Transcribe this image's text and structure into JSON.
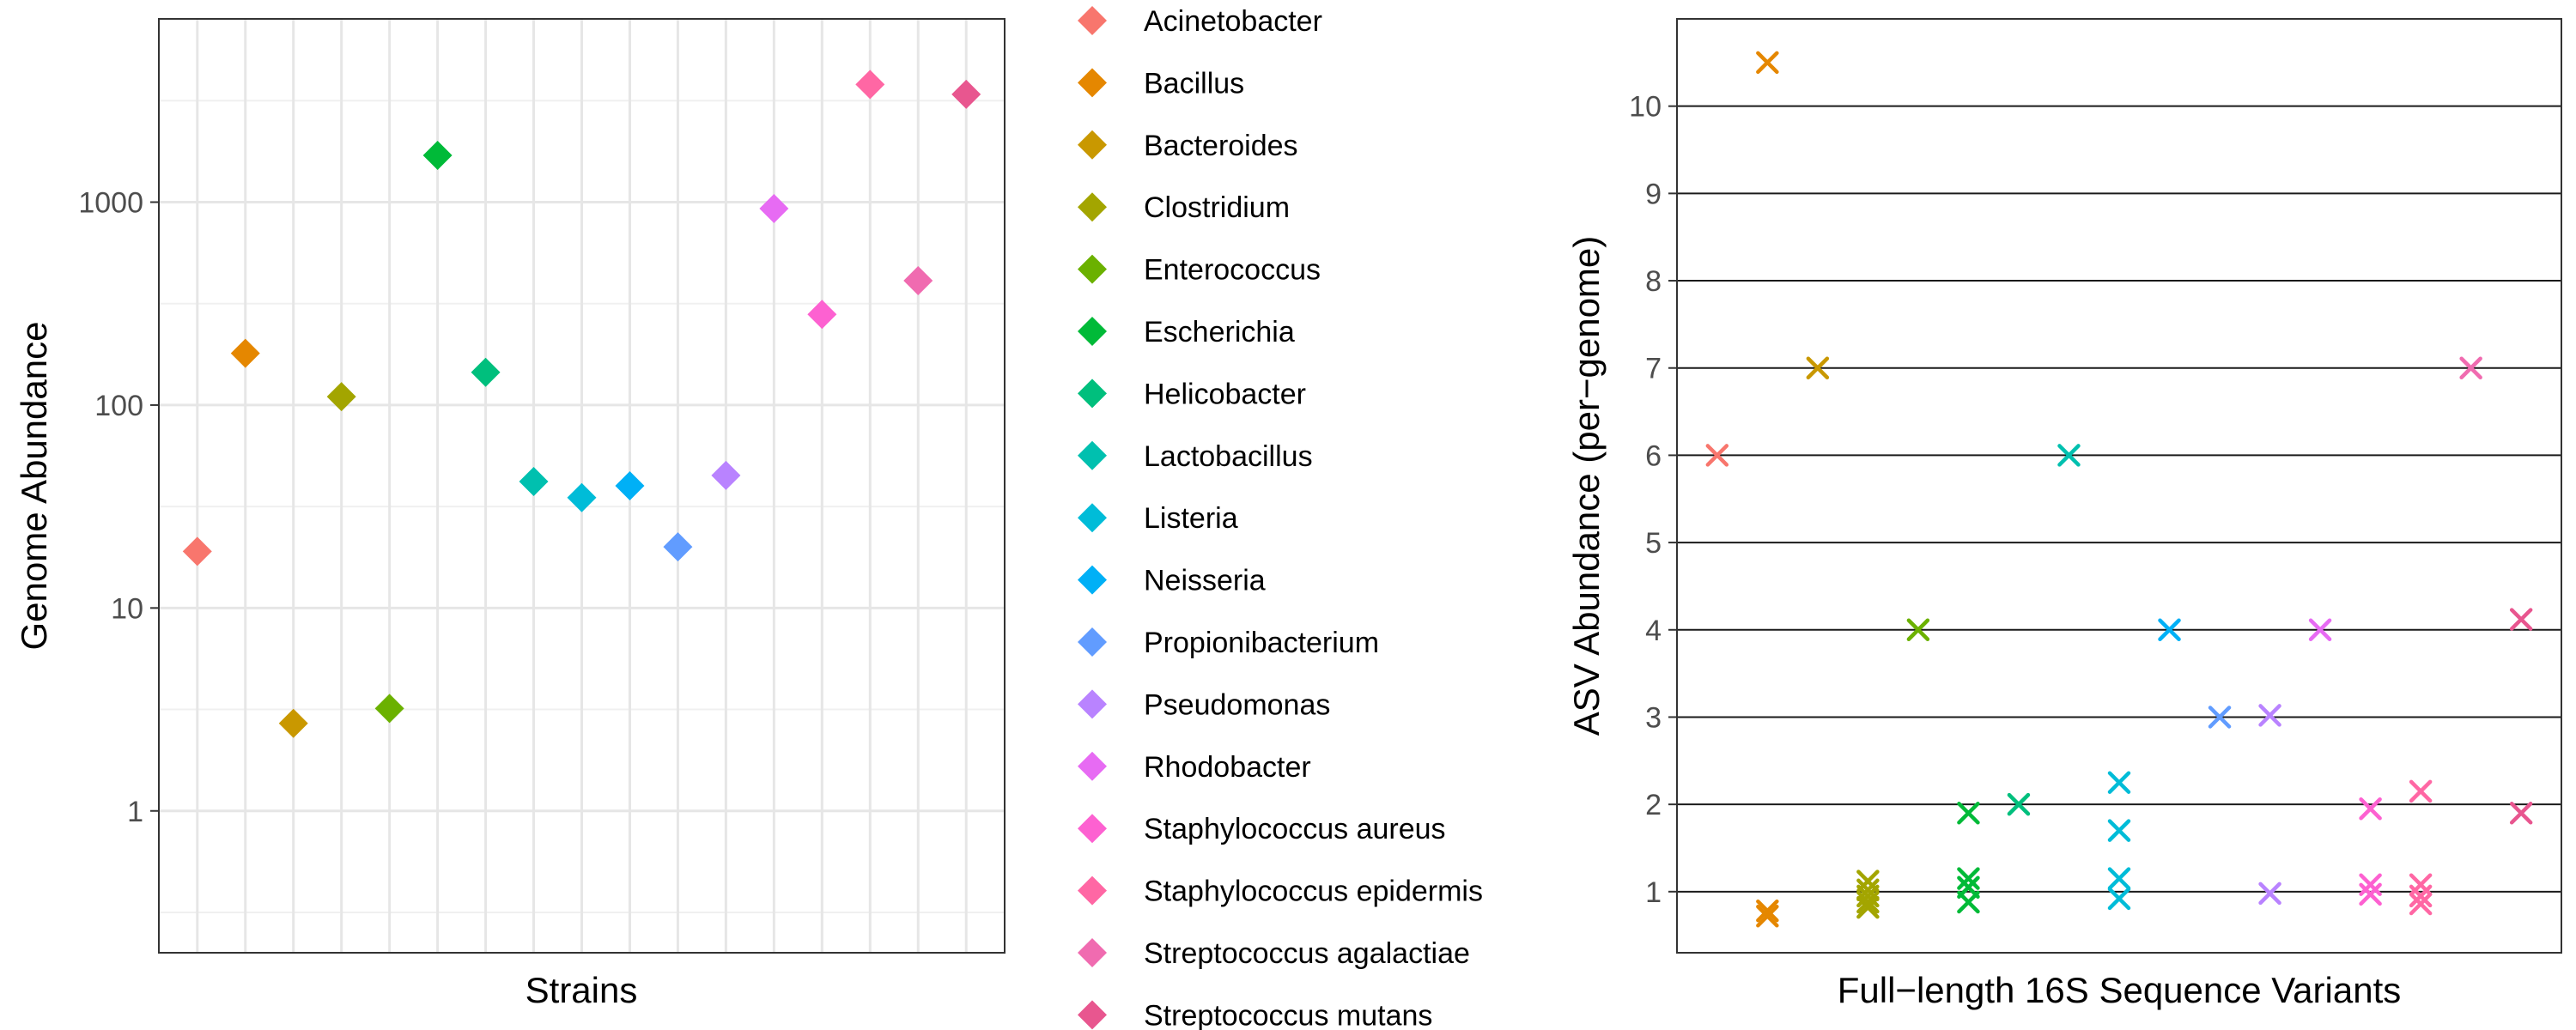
{
  "colors": {
    "Acinetobacter": "#F8766D",
    "Bacillus": "#E58700",
    "Bacteroides": "#C99800",
    "Clostridium": "#A3A500",
    "Enterococcus": "#6BB100",
    "Escherichia": "#00BA38",
    "Helicobacter": "#00BF7D",
    "Lactobacillus": "#00C0AF",
    "Listeria": "#00BCD8",
    "Neisseria": "#00B0F6",
    "Propionibacterium": "#619CFF",
    "Pseudomonas": "#B983FF",
    "Rhodobacter": "#E76BF3",
    "Staphylococcus aureus": "#FD61D1",
    "Staphylococcus epidermis": "#FF67A4",
    "Streptococcus agalactiae": "#F06BB0",
    "Streptococcus mutans": "#E8568F"
  },
  "chart_data": [
    {
      "type": "scatter",
      "title": "",
      "xlabel": "Strains",
      "ylabel": "Genome Abundance",
      "y_scale": "log10",
      "ylim": [
        0.2,
        8000
      ],
      "y_ticks": [
        1,
        10,
        100,
        1000
      ],
      "y_tick_labels": [
        "1",
        "10",
        "100",
        "1000"
      ],
      "x_tick_labels": "none",
      "marker": "diamond",
      "grid": true,
      "points": [
        {
          "strain": "Acinetobacter",
          "y": 19
        },
        {
          "strain": "Bacillus",
          "y": 180
        },
        {
          "strain": "Bacteroides",
          "y": 2.7
        },
        {
          "strain": "Clostridium",
          "y": 110
        },
        {
          "strain": "Enterococcus",
          "y": 3.2
        },
        {
          "strain": "Escherichia",
          "y": 1700
        },
        {
          "strain": "Helicobacter",
          "y": 145
        },
        {
          "strain": "Lactobacillus",
          "y": 42
        },
        {
          "strain": "Listeria",
          "y": 35
        },
        {
          "strain": "Neisseria",
          "y": 40
        },
        {
          "strain": "Propionibacterium",
          "y": 20
        },
        {
          "strain": "Pseudomonas",
          "y": 45
        },
        {
          "strain": "Rhodobacter",
          "y": 930
        },
        {
          "strain": "Staphylococcus aureus",
          "y": 280
        },
        {
          "strain": "Staphylococcus epidermis",
          "y": 3800
        },
        {
          "strain": "Streptococcus agalactiae",
          "y": 410
        },
        {
          "strain": "Streptococcus mutans",
          "y": 3400
        }
      ]
    },
    {
      "type": "scatter",
      "title": "",
      "xlabel": "Full−length 16S Sequence Variants",
      "ylabel": "ASV Abundance (per−genome)",
      "ylim": [
        0.3,
        11.0
      ],
      "y_ticks": [
        1,
        2,
        3,
        4,
        5,
        6,
        7,
        8,
        9,
        10
      ],
      "y_tick_labels": [
        "1",
        "2",
        "3",
        "4",
        "5",
        "6",
        "7",
        "8",
        "9",
        "10"
      ],
      "x_tick_labels": "none",
      "marker": "x",
      "grid": "horizontal-major",
      "points": [
        {
          "strain": "Acinetobacter",
          "y": [
            6.0
          ]
        },
        {
          "strain": "Bacillus",
          "y": [
            10.5,
            0.78,
            0.72
          ]
        },
        {
          "strain": "Bacteroides",
          "y": [
            7.0
          ]
        },
        {
          "strain": "Clostridium",
          "y": [
            1.12,
            1.02,
            0.95,
            0.88,
            0.82
          ]
        },
        {
          "strain": "Enterococcus",
          "y": [
            4.0
          ]
        },
        {
          "strain": "Escherichia",
          "y": [
            1.9,
            1.15,
            1.05,
            0.88
          ]
        },
        {
          "strain": "Helicobacter",
          "y": [
            2.0
          ]
        },
        {
          "strain": "Lactobacillus",
          "y": [
            6.0
          ]
        },
        {
          "strain": "Listeria",
          "y": [
            2.25,
            1.7,
            1.15,
            0.92
          ]
        },
        {
          "strain": "Neisseria",
          "y": [
            4.0
          ]
        },
        {
          "strain": "Propionibacterium",
          "y": [
            3.0
          ]
        },
        {
          "strain": "Pseudomonas",
          "y": [
            3.02,
            0.98
          ]
        },
        {
          "strain": "Rhodobacter",
          "y": [
            4.0
          ]
        },
        {
          "strain": "Staphylococcus aureus",
          "y": [
            1.95,
            1.08,
            0.97
          ]
        },
        {
          "strain": "Staphylococcus epidermis",
          "y": [
            2.15,
            1.08,
            0.95,
            0.86
          ]
        },
        {
          "strain": "Streptococcus agalactiae",
          "y": [
            7.0
          ]
        },
        {
          "strain": "Streptococcus mutans",
          "y": [
            4.12,
            1.9
          ]
        }
      ]
    }
  ],
  "legend": {
    "marker": "diamond",
    "items": [
      "Acinetobacter",
      "Bacillus",
      "Bacteroides",
      "Clostridium",
      "Enterococcus",
      "Escherichia",
      "Helicobacter",
      "Lactobacillus",
      "Listeria",
      "Neisseria",
      "Propionibacterium",
      "Pseudomonas",
      "Rhodobacter",
      "Staphylococcus aureus",
      "Staphylococcus epidermis",
      "Streptococcus agalactiae",
      "Streptococcus mutans"
    ]
  }
}
